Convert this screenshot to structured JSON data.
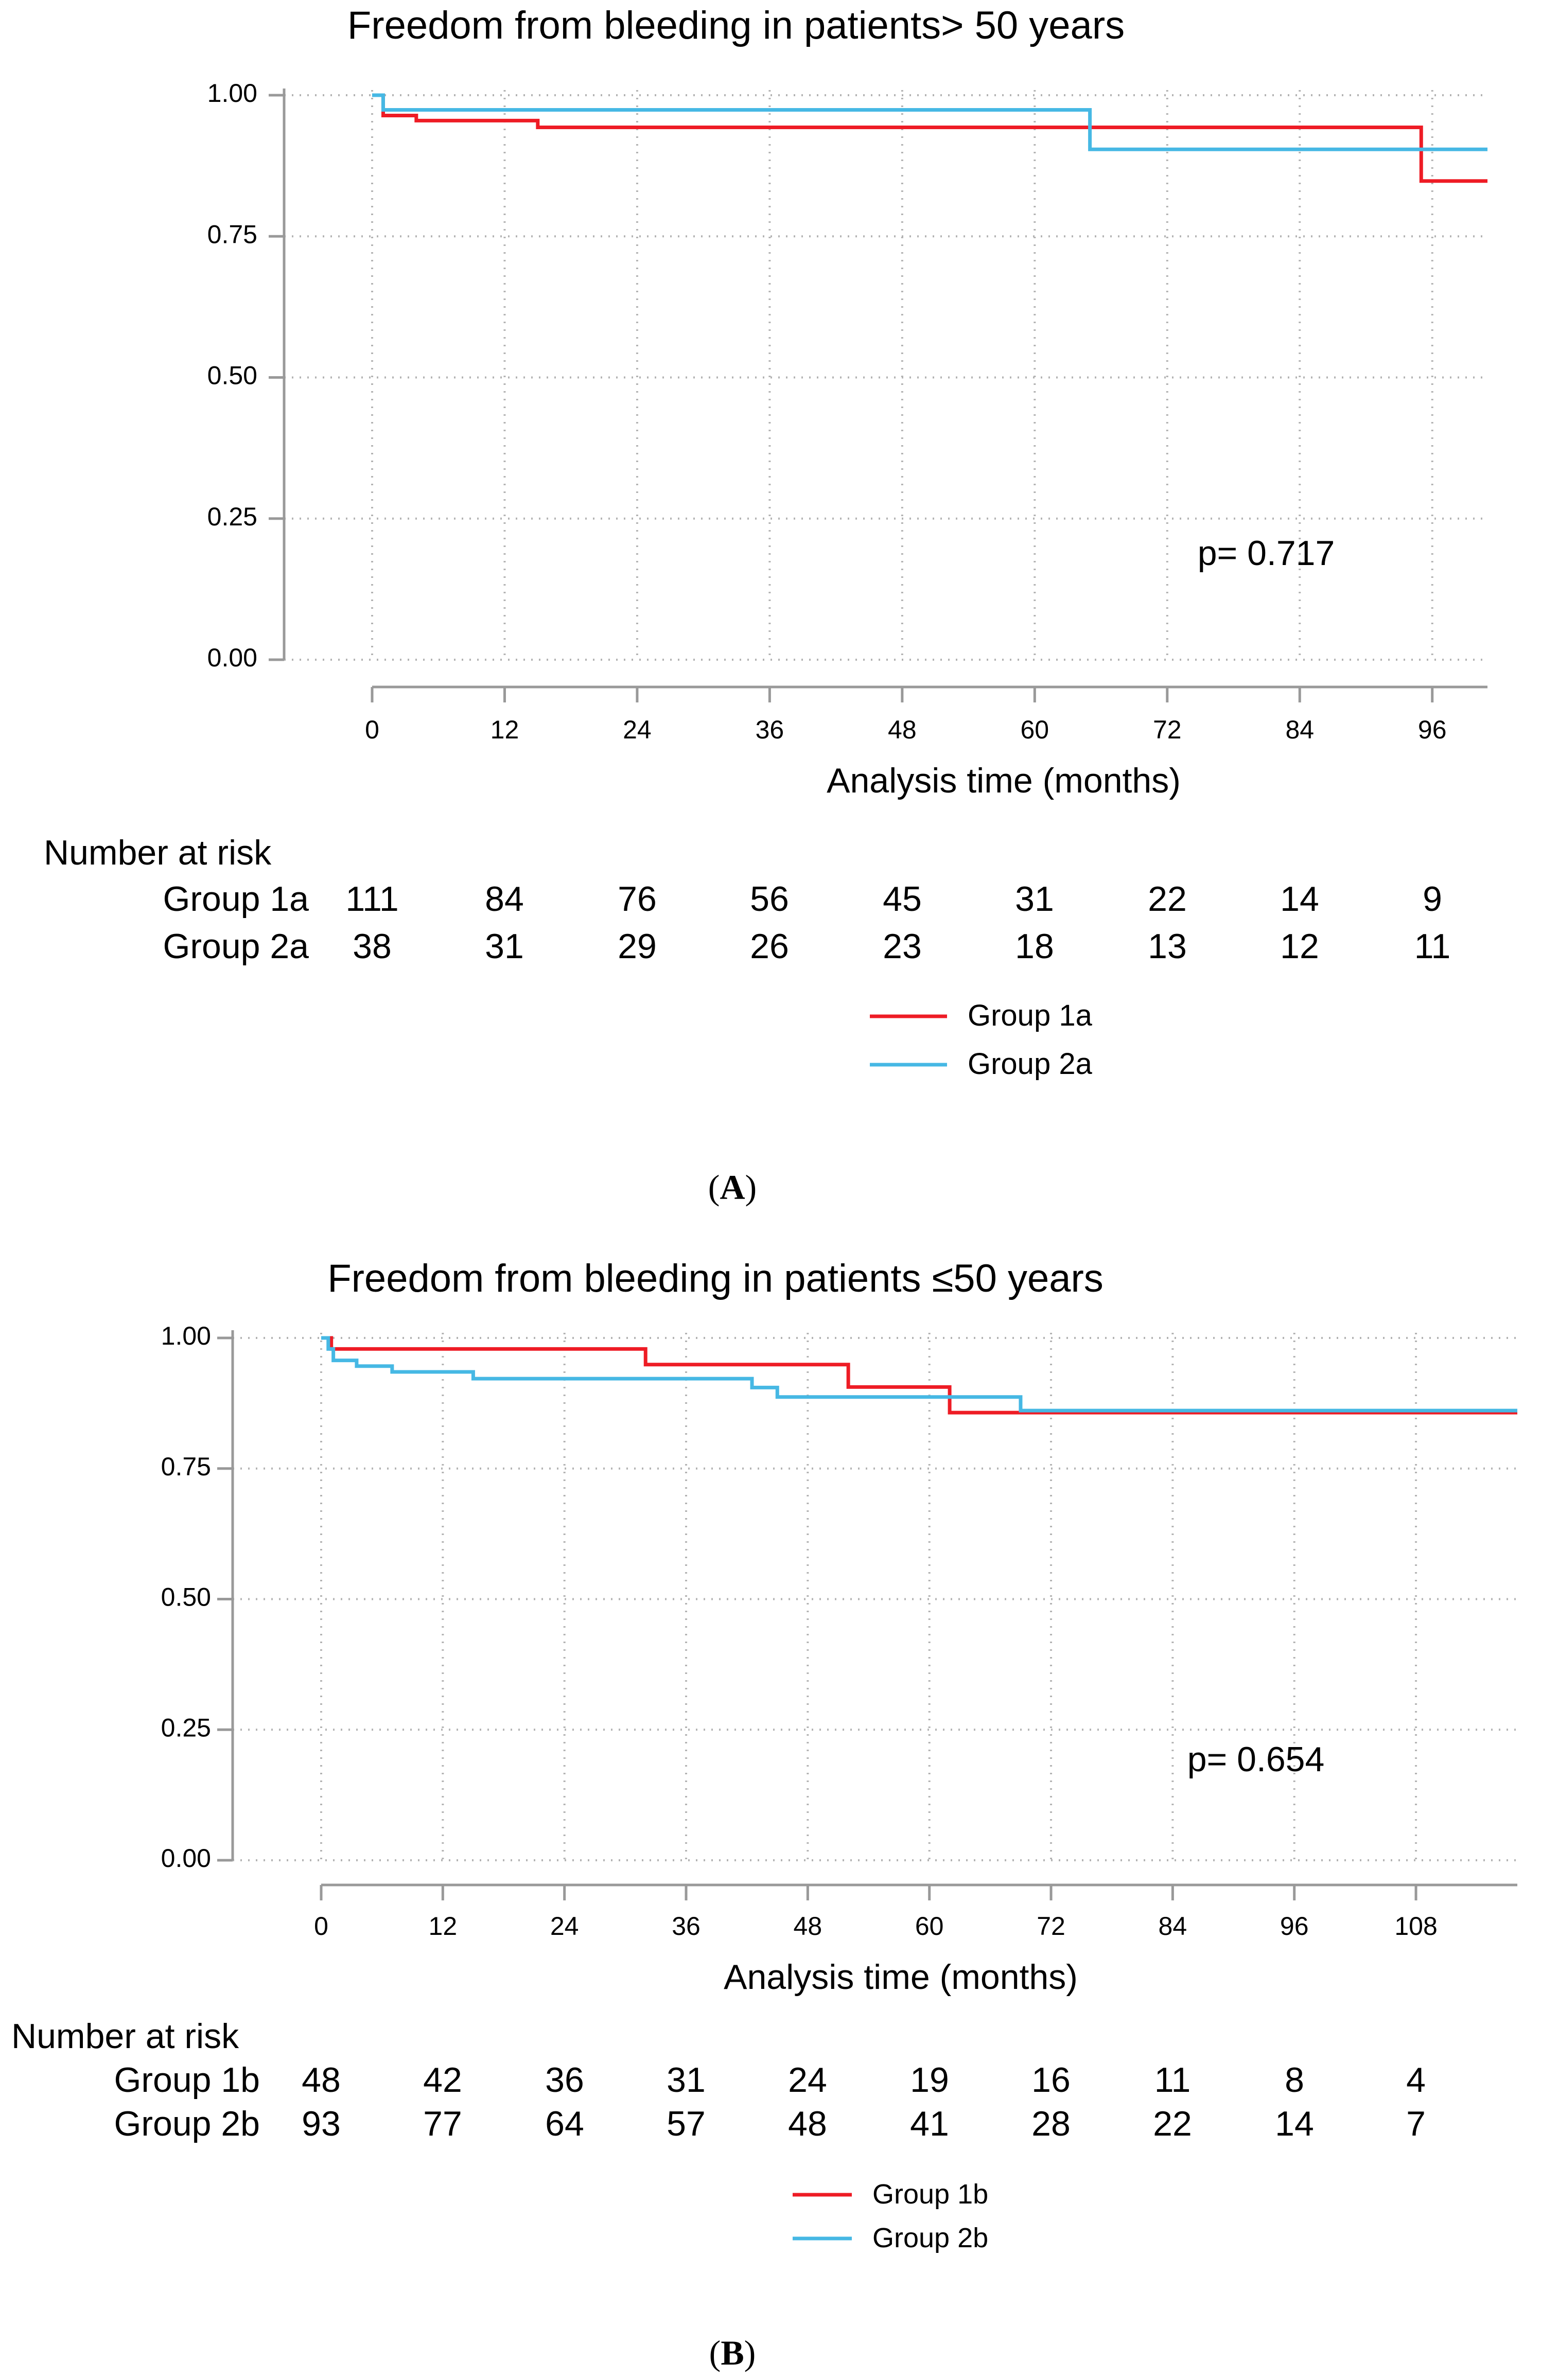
{
  "colors": {
    "group1": "#ee1c25",
    "group2": "#46b8e4",
    "axis": "#999999",
    "grid": "#b3b3b3",
    "text": "#000000"
  },
  "chart_data": [
    {
      "type": "line",
      "subtype": "kaplan-meier",
      "title": "Freedom from bleeding in patients> 50 years",
      "xlabel": "Analysis time (months)",
      "ylabel": "",
      "xlim": [
        0,
        101
      ],
      "ylim": [
        0,
        1
      ],
      "x_ticks": [
        "0",
        "12",
        "24",
        "36",
        "48",
        "60",
        "72",
        "84",
        "96"
      ],
      "x_tick_values": [
        0,
        12,
        24,
        36,
        48,
        60,
        72,
        84,
        96
      ],
      "y_ticks": [
        "0.00",
        "0.25",
        "0.50",
        "0.75",
        "1.00"
      ],
      "y_tick_values": [
        0,
        0.25,
        0.5,
        0.75,
        1
      ],
      "grid": true,
      "annotation": "p= 0.717",
      "series": [
        {
          "name": "Group 1a",
          "color": "#ee1c25",
          "x": [
            0,
            1,
            4,
            15,
            95,
            101
          ],
          "y": [
            1.0,
            0.964,
            0.955,
            0.943,
            0.848,
            0.848
          ]
        },
        {
          "name": "Group 2a",
          "color": "#46b8e4",
          "x": [
            0,
            1,
            65,
            101
          ],
          "y": [
            1.0,
            0.974,
            0.904,
            0.904
          ]
        }
      ],
      "risk_table": {
        "heading": "Number at risk",
        "rows": [
          {
            "label": "Group 1a",
            "values": [
              "111",
              "84",
              "76",
              "56",
              "45",
              "31",
              "22",
              "14",
              "9"
            ]
          },
          {
            "label": "Group 2a",
            "values": [
              "38",
              "31",
              "29",
              "26",
              "23",
              "18",
              "13",
              "12",
              "11"
            ]
          }
        ]
      },
      "legend": [
        "Group 1a",
        "Group 2a"
      ],
      "panel_label": "A"
    },
    {
      "type": "line",
      "subtype": "kaplan-meier",
      "title": "Freedom from bleeding in patients ≤50 years",
      "xlabel": "Analysis time (months)",
      "ylabel": "",
      "xlim": [
        0,
        118
      ],
      "ylim": [
        0,
        1
      ],
      "x_ticks": [
        "0",
        "12",
        "24",
        "36",
        "48",
        "60",
        "72",
        "84",
        "96",
        "108"
      ],
      "x_tick_values": [
        0,
        12,
        24,
        36,
        48,
        60,
        72,
        84,
        96,
        108
      ],
      "y_ticks": [
        "0.00",
        "0.25",
        "0.50",
        "0.75",
        "1.00"
      ],
      "y_tick_values": [
        0,
        0.25,
        0.5,
        0.75,
        1
      ],
      "grid": true,
      "annotation": "p= 0.654",
      "series": [
        {
          "name": "Group 1b",
          "color": "#ee1c25",
          "x": [
            0,
            1,
            32,
            52,
            62,
            118
          ],
          "y": [
            1.0,
            0.979,
            0.949,
            0.906,
            0.857,
            0.857
          ]
        },
        {
          "name": "Group 2b",
          "color": "#46b8e4",
          "x": [
            0,
            0.7,
            1.2,
            3.5,
            7,
            15,
            42.5,
            45,
            69,
            118
          ],
          "y": [
            1.0,
            0.979,
            0.957,
            0.946,
            0.935,
            0.922,
            0.905,
            0.887,
            0.861,
            0.861
          ]
        }
      ],
      "risk_table": {
        "heading": "Number at risk",
        "rows": [
          {
            "label": "Group 1b",
            "values": [
              "48",
              "42",
              "36",
              "31",
              "24",
              "19",
              "16",
              "11",
              "8",
              "4"
            ]
          },
          {
            "label": "Group 2b",
            "values": [
              "93",
              "77",
              "64",
              "57",
              "48",
              "41",
              "28",
              "22",
              "14",
              "7"
            ]
          }
        ]
      },
      "legend": [
        "Group 1b",
        "Group 2b"
      ],
      "panel_label": "B"
    }
  ]
}
